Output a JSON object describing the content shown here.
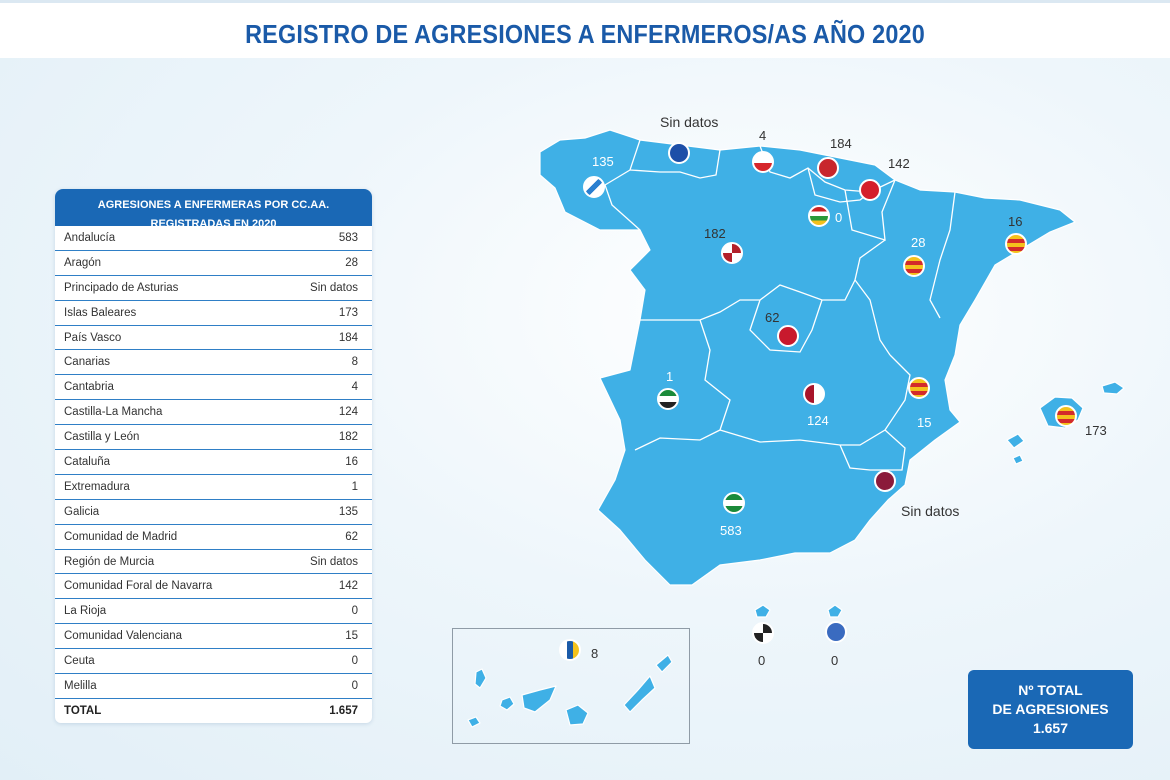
{
  "title": "REGISTRO DE AGRESIONES A ENFERMEROS/AS AÑO 2020",
  "table": {
    "header_line1": "AGRESIONES A ENFERMERAS POR CC.AA.",
    "header_line2": "REGISTRADAS EN 2020",
    "rows": [
      {
        "name": "Andalucía",
        "value": "583"
      },
      {
        "name": "Aragón",
        "value": "28"
      },
      {
        "name": "Principado de Asturias",
        "value": "Sin datos"
      },
      {
        "name": "Islas Baleares",
        "value": "173"
      },
      {
        "name": "País Vasco",
        "value": "184"
      },
      {
        "name": "Canarias",
        "value": "8"
      },
      {
        "name": "Cantabria",
        "value": "4"
      },
      {
        "name": "Castilla-La Mancha",
        "value": "124"
      },
      {
        "name": "Castilla y León",
        "value": "182"
      },
      {
        "name": "Cataluña",
        "value": "16"
      },
      {
        "name": "Extremadura",
        "value": "1"
      },
      {
        "name": "Galicia",
        "value": "135"
      },
      {
        "name": "Comunidad de Madrid",
        "value": "62"
      },
      {
        "name": "Región de Murcia",
        "value": "Sin datos"
      },
      {
        "name": "Comunidad Foral de Navarra",
        "value": "142"
      },
      {
        "name": "La Rioja",
        "value": "0"
      },
      {
        "name": "Comunidad Valenciana",
        "value": "15"
      },
      {
        "name": "Ceuta",
        "value": "0"
      },
      {
        "name": "Melilla",
        "value": "0"
      }
    ],
    "total_label": "TOTAL",
    "total_value": "1.657"
  },
  "map_labels": {
    "galicia": "135",
    "asturias": "Sin datos",
    "cantabria": "4",
    "pais_vasco": "184",
    "navarra": "142",
    "la_rioja": "0",
    "castilla_leon": "182",
    "aragon": "28",
    "cataluna": "16",
    "madrid": "62",
    "extremadura": "1",
    "castilla_la_mancha": "124",
    "valenciana": "15",
    "baleares": "173",
    "murcia": "Sin datos",
    "andalucia": "583",
    "canarias": "8",
    "ceuta": "0",
    "melilla": "0"
  },
  "total_box": {
    "line1": "Nº TOTAL",
    "line2": "DE AGRESIONES",
    "line3": "1.657"
  },
  "colors": {
    "map_fill": "#3fb0e6",
    "border": "#ffffff",
    "brand": "#1a68b5",
    "title": "#1a5aa8"
  }
}
